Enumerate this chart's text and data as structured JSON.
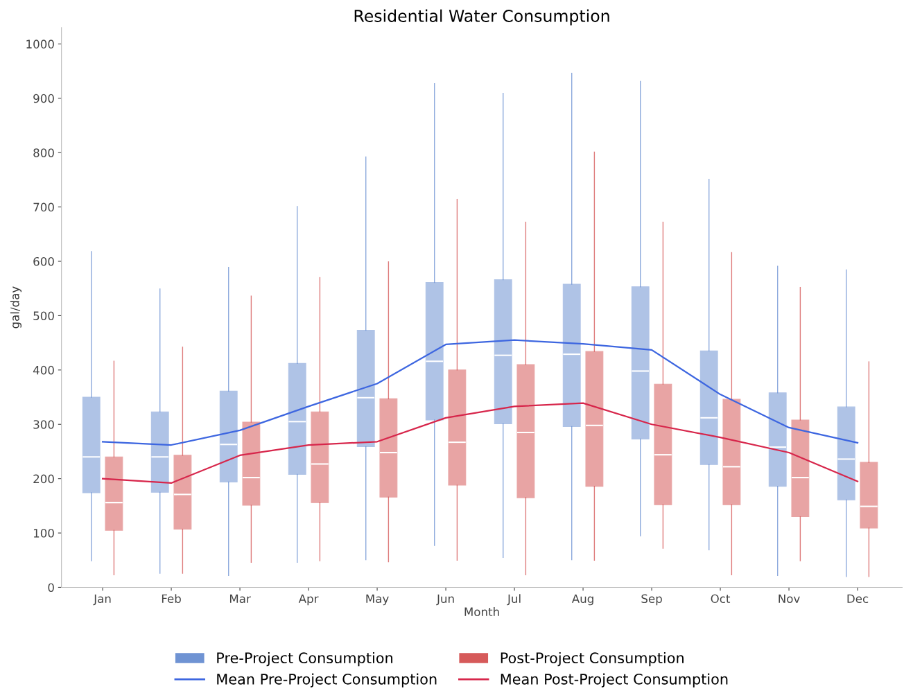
{
  "chart_data": {
    "type": "box",
    "title": "Residential Water Consumption",
    "xlabel": "Month",
    "ylabel": "gal/day",
    "categories": [
      "Jan",
      "Feb",
      "Mar",
      "Apr",
      "May",
      "Jun",
      "Jul",
      "Aug",
      "Sep",
      "Oct",
      "Nov",
      "Dec"
    ],
    "ylim": [
      0,
      1030
    ],
    "yticks": [
      0,
      100,
      200,
      300,
      400,
      500,
      600,
      700,
      800,
      900,
      1000
    ],
    "grid": false,
    "legend": "bottom",
    "series": [
      {
        "name": "Pre-Project Consumption",
        "color": "#6f93d3",
        "boxes": [
          {
            "low": 49,
            "q1": 174,
            "median": 240,
            "q3": 350,
            "high": 618
          },
          {
            "low": 26,
            "q1": 175,
            "median": 240,
            "q3": 323,
            "high": 549
          },
          {
            "low": 22,
            "q1": 194,
            "median": 263,
            "q3": 361,
            "high": 589
          },
          {
            "low": 46,
            "q1": 208,
            "median": 305,
            "q3": 412,
            "high": 701
          },
          {
            "low": 51,
            "q1": 259,
            "median": 349,
            "q3": 473,
            "high": 792
          },
          {
            "low": 77,
            "q1": 308,
            "median": 416,
            "q3": 561,
            "high": 927
          },
          {
            "low": 55,
            "q1": 301,
            "median": 427,
            "q3": 566,
            "high": 909
          },
          {
            "low": 51,
            "q1": 296,
            "median": 429,
            "q3": 558,
            "high": 946
          },
          {
            "low": 95,
            "q1": 273,
            "median": 398,
            "q3": 553,
            "high": 931
          },
          {
            "low": 69,
            "q1": 226,
            "median": 312,
            "q3": 435,
            "high": 751
          },
          {
            "low": 22,
            "q1": 186,
            "median": 258,
            "q3": 358,
            "high": 591
          },
          {
            "low": 20,
            "q1": 161,
            "median": 236,
            "q3": 332,
            "high": 584
          }
        ]
      },
      {
        "name": "Post-Project Consumption",
        "color": "#d65a5a",
        "boxes": [
          {
            "low": 23,
            "q1": 105,
            "median": 156,
            "q3": 240,
            "high": 416
          },
          {
            "low": 26,
            "q1": 107,
            "median": 171,
            "q3": 243,
            "high": 442
          },
          {
            "low": 46,
            "q1": 151,
            "median": 202,
            "q3": 304,
            "high": 536
          },
          {
            "low": 49,
            "q1": 156,
            "median": 227,
            "q3": 323,
            "high": 570
          },
          {
            "low": 47,
            "q1": 166,
            "median": 248,
            "q3": 347,
            "high": 599
          },
          {
            "low": 50,
            "q1": 188,
            "median": 267,
            "q3": 400,
            "high": 714
          },
          {
            "low": 23,
            "q1": 165,
            "median": 285,
            "q3": 410,
            "high": 672
          },
          {
            "low": 50,
            "q1": 186,
            "median": 298,
            "q3": 434,
            "high": 801
          },
          {
            "low": 72,
            "q1": 152,
            "median": 244,
            "q3": 374,
            "high": 672
          },
          {
            "low": 23,
            "q1": 152,
            "median": 222,
            "q3": 346,
            "high": 616
          },
          {
            "low": 49,
            "q1": 130,
            "median": 202,
            "q3": 308,
            "high": 552
          },
          {
            "low": 20,
            "q1": 109,
            "median": 149,
            "q3": 230,
            "high": 415
          }
        ]
      },
      {
        "name": "Mean Pre-Project Consumption",
        "type": "line",
        "color": "#3d66e0",
        "values": [
          268,
          262,
          289,
          333,
          375,
          447,
          455,
          448,
          437,
          355,
          294,
          266
        ]
      },
      {
        "name": "Mean Post-Project Consumption",
        "type": "line",
        "color": "#d7264b",
        "values": [
          200,
          192,
          243,
          262,
          268,
          312,
          333,
          339,
          300,
          276,
          248,
          195
        ]
      }
    ]
  }
}
